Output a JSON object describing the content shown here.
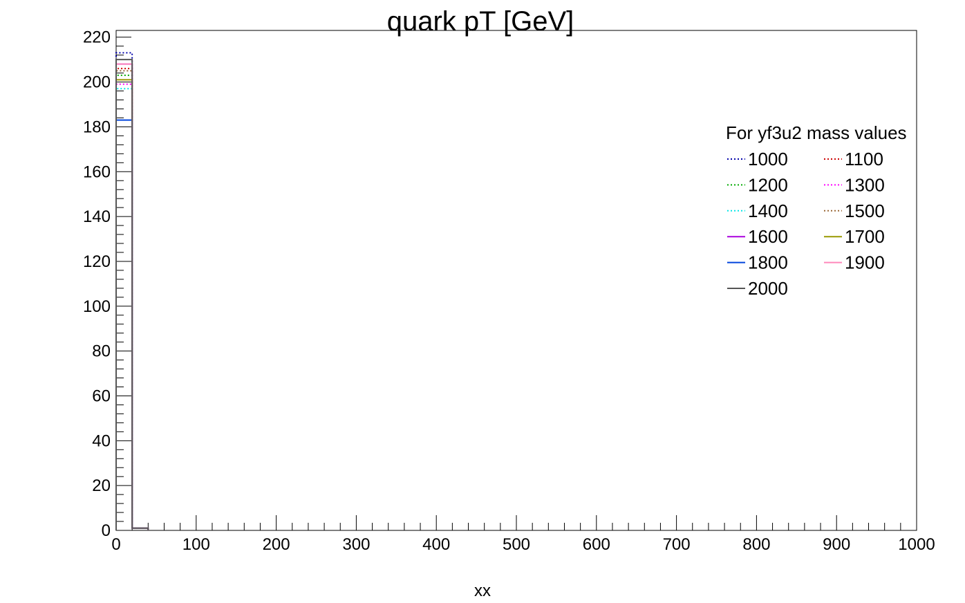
{
  "chart_data": {
    "type": "line",
    "title": "quark pT [GeV]",
    "xlabel": "xx",
    "ylabel": "",
    "xlim": [
      0,
      1000
    ],
    "ylim": [
      0,
      223
    ],
    "x_ticks": [
      "0",
      "100",
      "200",
      "300",
      "400",
      "500",
      "600",
      "700",
      "800",
      "900",
      "1000"
    ],
    "y_ticks": [
      "0",
      "20",
      "40",
      "60",
      "80",
      "100",
      "120",
      "140",
      "160",
      "180",
      "200",
      "220"
    ],
    "bin_edges": [
      0,
      20,
      40
    ],
    "grid": false,
    "legend": {
      "title": "For yf3u2 mass values",
      "placement": "top-right",
      "columns": 2
    },
    "series": [
      {
        "name": "1000",
        "color": "#0000aa",
        "style": "dotted",
        "values": [
          213,
          1
        ]
      },
      {
        "name": "1100",
        "color": "#cc0000",
        "style": "dotted",
        "values": [
          206,
          1
        ]
      },
      {
        "name": "1200",
        "color": "#00aa00",
        "style": "dotted",
        "values": [
          203,
          1
        ]
      },
      {
        "name": "1300",
        "color": "#ff00ff",
        "style": "dotted",
        "values": [
          199,
          1
        ]
      },
      {
        "name": "1400",
        "color": "#00e6e6",
        "style": "dotted",
        "values": [
          197,
          1
        ]
      },
      {
        "name": "1500",
        "color": "#996633",
        "style": "dotted",
        "values": [
          205,
          1
        ]
      },
      {
        "name": "1600",
        "color": "#aa00dd",
        "style": "solid",
        "values": [
          208,
          1
        ]
      },
      {
        "name": "1700",
        "color": "#999900",
        "style": "solid",
        "values": [
          201,
          1
        ]
      },
      {
        "name": "1800",
        "color": "#0044dd",
        "style": "solid",
        "values": [
          183,
          1
        ]
      },
      {
        "name": "1900",
        "color": "#ff88bb",
        "style": "solid",
        "values": [
          208,
          1
        ]
      },
      {
        "name": "2000",
        "color": "#555555",
        "style": "solid",
        "values": [
          210,
          1
        ]
      }
    ]
  }
}
